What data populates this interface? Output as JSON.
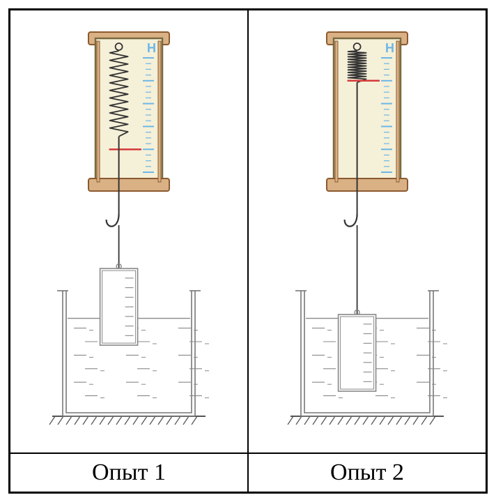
{
  "labels": {
    "exp1": "Опыт 1",
    "exp2": "Опыт 2"
  },
  "dynamometer": {
    "unit_label": "Н",
    "body_fill": "#f5f0d8",
    "body_stroke": "#7a6a40",
    "cap_fill": "#d9b185",
    "cap_stroke": "#8a5a30",
    "scale_color": "#6db7e8",
    "pointer_color": "#d43a3a",
    "spring_color": "#333333",
    "rod_color": "#333333",
    "scale_major_ticks": 6,
    "scale_minor_per_major": 4
  },
  "experiments": {
    "exp1": {
      "spring_extension_ratio": 0.72,
      "pointer_tick_index": 4,
      "cylinder_submersion_ratio": 0.35
    },
    "exp2": {
      "spring_extension_ratio": 0.28,
      "pointer_tick_index": 1,
      "cylinder_submersion_ratio": 0.95
    }
  },
  "beaker": {
    "stroke": "#777777",
    "water_stroke": "#888888",
    "ground_stroke": "#555555",
    "cylinder_stroke": "#888888",
    "cylinder_fill": "#ffffff",
    "water_level_ratio": 0.78
  }
}
